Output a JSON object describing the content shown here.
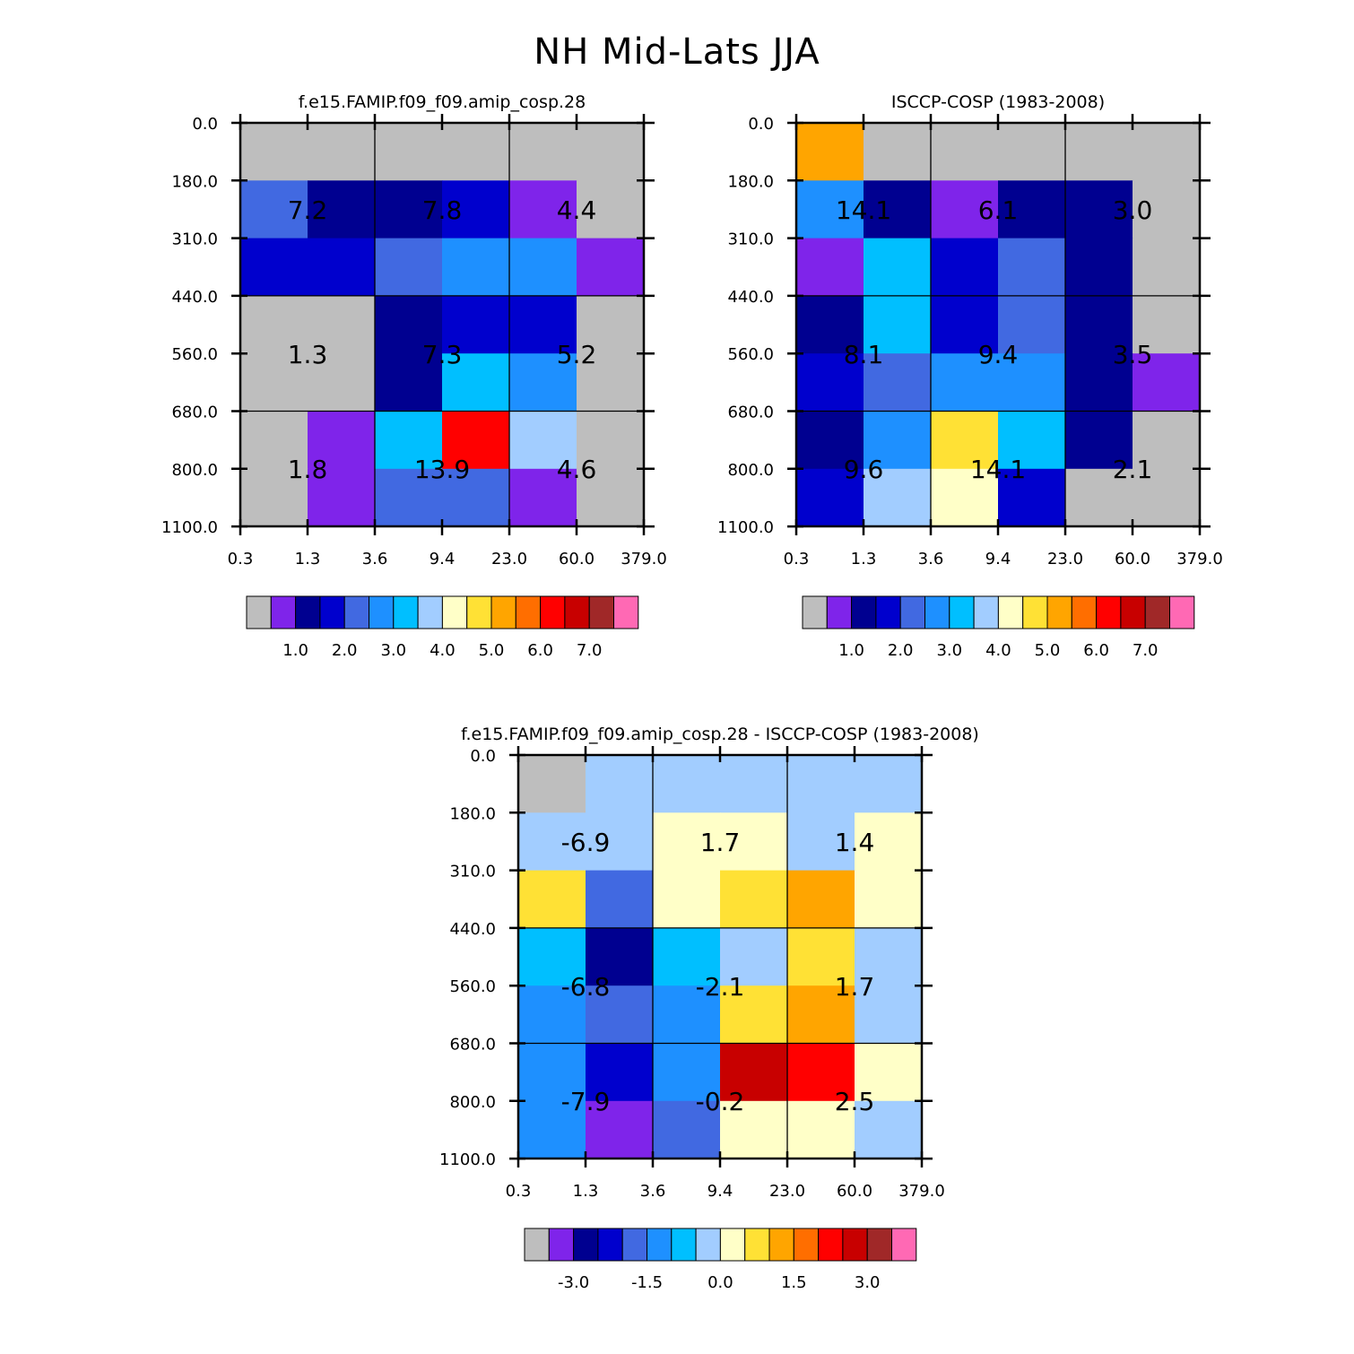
{
  "title": "NH Mid-Lats JJA",
  "chart_data": [
    {
      "type": "heatmap",
      "title": "f.e15.FAMIP.f09_f09.amip_cosp.28",
      "x_ticks": [
        "0.3",
        "1.3",
        "3.6",
        "9.4",
        "23.0",
        "60.0",
        "379.0"
      ],
      "y_ticks": [
        "0.0",
        "180.0",
        "310.0",
        "440.0",
        "560.0",
        "680.0",
        "800.0",
        "1100.0"
      ],
      "cells": [
        [
          0,
          0,
          0,
          0,
          0,
          0
        ],
        [
          4,
          2,
          2,
          3,
          1,
          0
        ],
        [
          3,
          3,
          4,
          5,
          5,
          1
        ],
        [
          0,
          0,
          2,
          3,
          3,
          0
        ],
        [
          0,
          0,
          2,
          6,
          5,
          0
        ],
        [
          0,
          1,
          6,
          12,
          7,
          0
        ],
        [
          0,
          1,
          4,
          4,
          1,
          0
        ]
      ],
      "annotations": [
        {
          "col": 0,
          "row": 0,
          "text": "7.2"
        },
        {
          "col": 1,
          "row": 0,
          "text": "7.8"
        },
        {
          "col": 2,
          "row": 0,
          "text": "4.4"
        },
        {
          "col": 0,
          "row": 1,
          "text": "1.3"
        },
        {
          "col": 1,
          "row": 1,
          "text": "7.3"
        },
        {
          "col": 2,
          "row": 1,
          "text": "5.2"
        },
        {
          "col": 0,
          "row": 2,
          "text": "1.8"
        },
        {
          "col": 1,
          "row": 2,
          "text": "13.9"
        },
        {
          "col": 2,
          "row": 2,
          "text": "4.6"
        }
      ],
      "colorbar_labels": [
        "1.0",
        "2.0",
        "3.0",
        "4.0",
        "5.0",
        "6.0",
        "7.0"
      ]
    },
    {
      "type": "heatmap",
      "title": "ISCCP-COSP (1983-2008)",
      "x_ticks": [
        "0.3",
        "1.3",
        "3.6",
        "9.4",
        "23.0",
        "60.0",
        "379.0"
      ],
      "y_ticks": [
        "0.0",
        "180.0",
        "310.0",
        "440.0",
        "560.0",
        "680.0",
        "800.0",
        "1100.0"
      ],
      "cells": [
        [
          10,
          0,
          0,
          0,
          0,
          0
        ],
        [
          5,
          2,
          1,
          2,
          2,
          0
        ],
        [
          1,
          6,
          3,
          4,
          2,
          0
        ],
        [
          2,
          6,
          3,
          4,
          2,
          0
        ],
        [
          3,
          4,
          5,
          5,
          2,
          1
        ],
        [
          2,
          5,
          9,
          6,
          2,
          0
        ],
        [
          3,
          7,
          8,
          3,
          0,
          0
        ]
      ],
      "annotations": [
        {
          "col": 0,
          "row": 0,
          "text": "14.1"
        },
        {
          "col": 1,
          "row": 0,
          "text": "6.1"
        },
        {
          "col": 2,
          "row": 0,
          "text": "3.0"
        },
        {
          "col": 0,
          "row": 1,
          "text": "8.1"
        },
        {
          "col": 1,
          "row": 1,
          "text": "9.4"
        },
        {
          "col": 2,
          "row": 1,
          "text": "3.5"
        },
        {
          "col": 0,
          "row": 2,
          "text": "9.6"
        },
        {
          "col": 1,
          "row": 2,
          "text": "14.1"
        },
        {
          "col": 2,
          "row": 2,
          "text": "2.1"
        }
      ],
      "colorbar_labels": [
        "1.0",
        "2.0",
        "3.0",
        "4.0",
        "5.0",
        "6.0",
        "7.0"
      ]
    },
    {
      "type": "heatmap",
      "title": "f.e15.FAMIP.f09_f09.amip_cosp.28 - ISCCP-COSP (1983-2008)",
      "x_ticks": [
        "0.3",
        "1.3",
        "3.6",
        "9.4",
        "23.0",
        "60.0",
        "379.0"
      ],
      "y_ticks": [
        "0.0",
        "180.0",
        "310.0",
        "440.0",
        "560.0",
        "680.0",
        "800.0",
        "1100.0"
      ],
      "cells": [
        [
          0,
          7,
          7,
          7,
          7,
          7
        ],
        [
          7,
          7,
          8,
          8,
          7,
          8
        ],
        [
          9,
          4,
          8,
          9,
          10,
          8
        ],
        [
          6,
          2,
          6,
          7,
          9,
          7
        ],
        [
          5,
          4,
          5,
          9,
          10,
          7
        ],
        [
          5,
          3,
          5,
          13,
          12,
          8
        ],
        [
          5,
          1,
          4,
          8,
          8,
          7
        ]
      ],
      "annotations": [
        {
          "col": 0,
          "row": 0,
          "text": "-6.9"
        },
        {
          "col": 1,
          "row": 0,
          "text": "1.7"
        },
        {
          "col": 2,
          "row": 0,
          "text": "1.4"
        },
        {
          "col": 0,
          "row": 1,
          "text": "-6.8"
        },
        {
          "col": 1,
          "row": 1,
          "text": "-2.1"
        },
        {
          "col": 2,
          "row": 1,
          "text": "1.7"
        },
        {
          "col": 0,
          "row": 2,
          "text": "-7.9"
        },
        {
          "col": 1,
          "row": 2,
          "text": "-0.2"
        },
        {
          "col": 2,
          "row": 2,
          "text": "2.5"
        }
      ],
      "colorbar_labels": [
        "-3.0",
        "-1.5",
        "0.0",
        "1.5",
        "3.0"
      ]
    }
  ],
  "colors": {
    "palette": [
      "#bebebe",
      "#7f24ea",
      "#000090",
      "#0000cd",
      "#4169e1",
      "#1e90ff",
      "#00bfff",
      "#a2cdff",
      "#ffffc8",
      "#ffe135",
      "#ffa500",
      "#ff6e00",
      "#ff0000",
      "#c80000",
      "#a02828",
      "#ff69b4"
    ]
  }
}
